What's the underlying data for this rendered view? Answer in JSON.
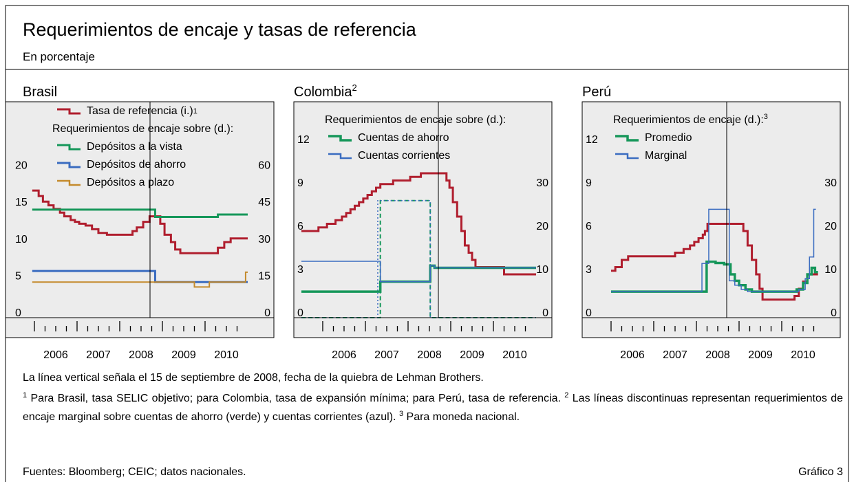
{
  "title": "Requerimientos de encaje y tasas de referencia",
  "subtitle": "En porcentaje",
  "vline_note": "La línea vertical señala el 15 de septiembre de 2008, fecha de la quiebra de Lehman Brothers.",
  "footnotes": [
    {
      "mark": "1",
      "text": "Para Brasil, tasa SELIC objetivo; para Colombia, tasa de expansión mínima; para Perú, tasa de referencia."
    },
    {
      "mark": "2",
      "text": "Las líneas discontinuas representan requerimientos de encaje marginal sobre cuentas de ahorro (verde) y cuentas corrientes (azul)."
    },
    {
      "mark": "3",
      "text": "Para moneda nacional."
    }
  ],
  "source": "Fuentes: Bloomberg; CEIC; datos nacionales.",
  "figure_label": "Gráfico 3",
  "chart_data": [
    {
      "type": "line",
      "drawstyle": "steps",
      "title": "Brasil",
      "legend_title": "Requerimientos de encaje sobre (d.):",
      "xlim": [
        2005.323,
        2011.613
      ],
      "xticks": [
        2006,
        2007,
        2008,
        2009,
        2010
      ],
      "xminorticks": [
        2006.25,
        2006.5,
        2006.75,
        2007.25,
        2007.5,
        2007.75,
        2008.25,
        2008.5,
        2008.75,
        2009.25,
        2009.5,
        2009.75,
        2010.25,
        2010.5,
        2010.75
      ],
      "ylim": [
        0,
        29.3
      ],
      "yticks": [
        0,
        5,
        10,
        15,
        20
      ],
      "y2lim": [
        0,
        87.9
      ],
      "y2ticks": [
        0,
        15,
        30,
        45,
        60
      ],
      "vline": 2008.71,
      "grid": false,
      "series": [
        {
          "name": "Tasa de referencia (i.)",
          "name_note": "1",
          "color": "#b01e2e",
          "linewidth": 3,
          "axis": "y",
          "x": [
            2005.95,
            2006.1,
            2006.2,
            2006.33,
            2006.45,
            2006.6,
            2006.7,
            2006.85,
            2006.95,
            2007.05,
            2007.2,
            2007.35,
            2007.5,
            2007.7,
            2008.3,
            2008.4,
            2008.55,
            2008.7,
            2008.95,
            2009.05,
            2009.2,
            2009.3,
            2009.42,
            2010.3,
            2010.45,
            2010.6,
            2011.0
          ],
          "values": [
            17.25,
            16.5,
            15.75,
            15.25,
            14.75,
            14.25,
            13.75,
            13.25,
            13.0,
            12.75,
            12.5,
            12.0,
            11.5,
            11.25,
            11.75,
            12.25,
            13.0,
            13.75,
            12.75,
            11.25,
            10.25,
            9.25,
            8.75,
            9.5,
            10.25,
            10.75,
            10.75
          ]
        },
        {
          "name": "Depósitos a la vista",
          "color": "#16975a",
          "linewidth": 3,
          "axis": "y2",
          "x": [
            2005.95,
            2008.83,
            2010.3,
            2011.0
          ],
          "values": [
            44,
            41,
            42,
            42
          ]
        },
        {
          "name": "Depósitos de ahorro",
          "color": "#3a6cc0",
          "linewidth": 3,
          "axis": "y2",
          "x": [
            2005.95,
            2008.83,
            2011.0
          ],
          "values": [
            19,
            14.5,
            14.5
          ]
        },
        {
          "name": "Depósitos a plazo",
          "color": "#c48a2c",
          "linewidth": 2,
          "axis": "y2",
          "x": [
            2005.95,
            2009.75,
            2010.1,
            2010.95,
            2011.0
          ],
          "values": [
            14.5,
            12.5,
            14.5,
            18.5,
            18.5
          ]
        }
      ]
    },
    {
      "type": "line",
      "drawstyle": "steps",
      "title": "Colombia",
      "title_note": "2",
      "legend_title": "Requerimientos de encaje sobre (d.):",
      "xlim": [
        2005.323,
        2011.371
      ],
      "xticks": [
        2006,
        2007,
        2008,
        2009,
        2010
      ],
      "xminorticks": [
        2006.25,
        2006.5,
        2006.75,
        2007.25,
        2007.5,
        2007.75,
        2008.25,
        2008.5,
        2008.75,
        2009.25,
        2009.5,
        2009.75,
        2010.25,
        2010.5,
        2010.75
      ],
      "ylim": [
        0,
        14.95
      ],
      "yticks": [
        0,
        3,
        6,
        9,
        12
      ],
      "y2lim": [
        0,
        49.8
      ],
      "y2ticks": [
        0,
        10,
        20,
        30
      ],
      "vline": 2008.71,
      "grid": false,
      "series": [
        {
          "color": "#b01e2e",
          "linewidth": 3,
          "axis": "y",
          "x": [
            2005.5,
            2005.9,
            2006.1,
            2006.3,
            2006.45,
            2006.55,
            2006.65,
            2006.75,
            2006.85,
            2006.95,
            2007.05,
            2007.15,
            2007.25,
            2007.35,
            2007.65,
            2008.05,
            2008.3,
            2008.9,
            2008.97,
            2009.05,
            2009.15,
            2009.25,
            2009.33,
            2009.42,
            2009.5,
            2009.58,
            2010.25,
            2011.0
          ],
          "values": [
            6.0,
            6.25,
            6.5,
            6.75,
            7.0,
            7.25,
            7.5,
            7.75,
            8.0,
            8.25,
            8.5,
            8.75,
            9.0,
            9.25,
            9.5,
            9.75,
            10.0,
            9.5,
            9.0,
            8.0,
            7.0,
            6.0,
            5.0,
            4.5,
            4.0,
            3.5,
            3.0,
            3.0
          ]
        },
        {
          "color": "#16975a",
          "linewidth": 2,
          "axis": "y2",
          "dash": "dashed",
          "x": [
            2005.5,
            2007.35,
            2008.52,
            2011.0
          ],
          "values": [
            0,
            27,
            0,
            0
          ]
        },
        {
          "color": "#3a6cc0",
          "linewidth": 1.5,
          "axis": "y2",
          "dash": "dotted",
          "x": [
            2005.5,
            2007.29,
            2008.52,
            2011.0
          ],
          "values": [
            0,
            27,
            0,
            0
          ]
        },
        {
          "name": "Cuentas de ahorro",
          "color": "#16975a",
          "linewidth": 3.5,
          "axis": "y2",
          "x": [
            2005.5,
            2007.35,
            2008.52,
            2008.62,
            2011.0
          ],
          "values": [
            6,
            8.3,
            12,
            11.5,
            11.5
          ]
        },
        {
          "name": "Cuentas corrientes",
          "color": "#3a6cc0",
          "linewidth": 1.5,
          "axis": "y2",
          "x": [
            2005.5,
            2007.35,
            2008.52,
            2008.62,
            2011.0
          ],
          "values": [
            13,
            8.3,
            12,
            11.5,
            11.5
          ]
        }
      ]
    },
    {
      "type": "line",
      "drawstyle": "steps",
      "title": "Perú",
      "legend_title": "Requerimientos de encaje (d.):",
      "legend_title_note": "3",
      "xlim": [
        2005.323,
        2011.371
      ],
      "xticks": [
        2006,
        2007,
        2008,
        2009,
        2010
      ],
      "xminorticks": [
        2006.25,
        2006.5,
        2006.75,
        2007.25,
        2007.5,
        2007.75,
        2008.25,
        2008.5,
        2008.75,
        2009.25,
        2009.5,
        2009.75,
        2010.25,
        2010.5,
        2010.75
      ],
      "ylim": [
        0,
        14.95
      ],
      "yticks": [
        0,
        3,
        6,
        9,
        12
      ],
      "y2lim": [
        0,
        49.8
      ],
      "y2ticks": [
        0,
        10,
        20,
        30
      ],
      "vline": 2008.71,
      "grid": false,
      "series": [
        {
          "color": "#b01e2e",
          "linewidth": 3,
          "axis": "y",
          "x": [
            2006.0,
            2006.1,
            2006.25,
            2006.4,
            2007.5,
            2007.7,
            2007.85,
            2007.95,
            2008.05,
            2008.15,
            2008.2,
            2008.26,
            2009.1,
            2009.2,
            2009.3,
            2009.4,
            2009.48,
            2009.55,
            2010.3,
            2010.4,
            2010.5,
            2010.6,
            2010.85
          ],
          "values": [
            3.25,
            3.5,
            4.0,
            4.25,
            4.5,
            4.75,
            5.0,
            5.25,
            5.5,
            5.75,
            6.0,
            6.5,
            6.0,
            5.0,
            4.0,
            3.0,
            2.0,
            1.25,
            1.5,
            2.0,
            2.5,
            3.0,
            3.0
          ]
        },
        {
          "name": "Promedio",
          "color": "#16975a",
          "linewidth": 3.5,
          "axis": "y2",
          "x": [
            2006.0,
            2008.24,
            2008.45,
            2008.65,
            2008.8,
            2008.9,
            2009.0,
            2009.15,
            2009.3,
            2010.35,
            2010.5,
            2010.6,
            2010.7,
            2010.78,
            2010.85
          ],
          "values": [
            6,
            12.9,
            12.6,
            12.3,
            10,
            8.5,
            7.5,
            6.5,
            6,
            6.5,
            8,
            10,
            11.5,
            10.5,
            10.5
          ]
        },
        {
          "name": "Marginal",
          "color": "#3a6cc0",
          "linewidth": 1.5,
          "axis": "y2",
          "x": [
            2006.0,
            2008.13,
            2008.29,
            2008.77,
            2008.9,
            2009.05,
            2009.2,
            2010.4,
            2010.55,
            2010.65,
            2010.75,
            2010.8
          ],
          "values": [
            6,
            12.5,
            25,
            8.5,
            7.5,
            6.5,
            6,
            6.5,
            9,
            14,
            25,
            25
          ]
        }
      ]
    }
  ]
}
